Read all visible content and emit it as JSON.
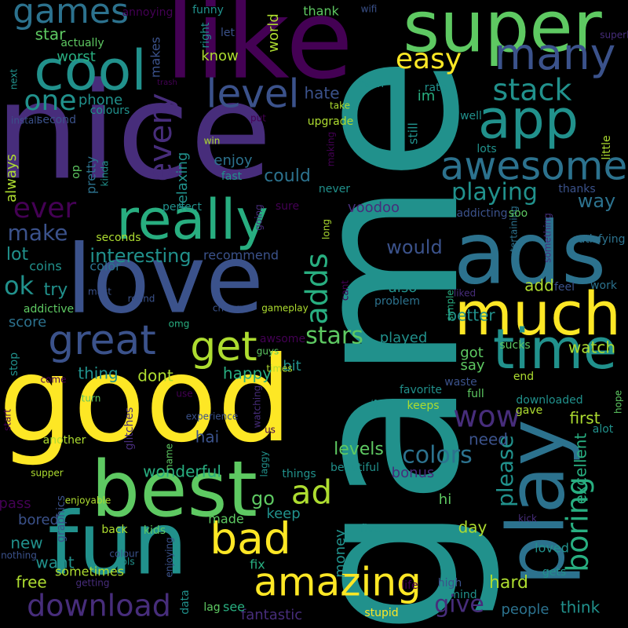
{
  "background": "#000000",
  "palette": {
    "purple": "#440154",
    "indigo": "#472d7b",
    "blue": "#3b528b",
    "steel": "#2c728e",
    "teal": "#21918c",
    "green": "#28ae80",
    "lime": "#5ec962",
    "yellowgreen": "#addc30",
    "yellow": "#fde725"
  },
  "words": [
    {
      "text": "game",
      "color": "teal"
    },
    {
      "text": "nice",
      "color": "indigo"
    },
    {
      "text": "good",
      "color": "yellow"
    },
    {
      "text": "love",
      "color": "blue"
    },
    {
      "text": "like",
      "color": "purple"
    },
    {
      "text": "super",
      "color": "lime"
    },
    {
      "text": "fun",
      "color": "teal"
    },
    {
      "text": "best",
      "color": "lime"
    },
    {
      "text": "ads",
      "color": "steel"
    },
    {
      "text": "much",
      "color": "yellow"
    },
    {
      "text": "cool",
      "color": "teal"
    },
    {
      "text": "play",
      "color": "steel"
    },
    {
      "text": "app",
      "color": "teal"
    },
    {
      "text": "really",
      "color": "green"
    },
    {
      "text": "amazing",
      "color": "yellow"
    },
    {
      "text": "great",
      "color": "blue"
    },
    {
      "text": "time",
      "color": "teal"
    },
    {
      "text": "awesome",
      "color": "steel"
    },
    {
      "text": "many",
      "color": "blue"
    },
    {
      "text": "games",
      "color": "steel"
    },
    {
      "text": "level",
      "color": "blue"
    },
    {
      "text": "bad",
      "color": "yellow"
    },
    {
      "text": "get",
      "color": "yellowgreen"
    },
    {
      "text": "easy",
      "color": "yellow"
    },
    {
      "text": "one",
      "color": "teal"
    },
    {
      "text": "every",
      "color": "indigo"
    },
    {
      "text": "download",
      "color": "indigo"
    },
    {
      "text": "stack",
      "color": "teal"
    },
    {
      "text": "wow",
      "color": "indigo"
    },
    {
      "text": "ad",
      "color": "yellowgreen"
    },
    {
      "text": "ever",
      "color": "purple"
    },
    {
      "text": "boring",
      "color": "green"
    },
    {
      "text": "adds",
      "color": "green"
    },
    {
      "text": "stars",
      "color": "lime"
    },
    {
      "text": "playing",
      "color": "teal"
    },
    {
      "text": "make",
      "color": "blue"
    },
    {
      "text": "colors",
      "color": "steel"
    },
    {
      "text": "please",
      "color": "teal"
    },
    {
      "text": "interesting",
      "color": "teal"
    },
    {
      "text": "wonderful",
      "color": "green"
    },
    {
      "text": "give",
      "color": "indigo"
    },
    {
      "text": "ok",
      "color": "teal"
    },
    {
      "text": "would",
      "color": "blue"
    },
    {
      "text": "watch",
      "color": "yellowgreen"
    },
    {
      "text": "happy",
      "color": "green"
    },
    {
      "text": "first",
      "color": "yellowgreen"
    },
    {
      "text": "could",
      "color": "steel"
    },
    {
      "text": "levels",
      "color": "lime"
    },
    {
      "text": "hard",
      "color": "yellowgreen"
    },
    {
      "text": "better",
      "color": "teal"
    },
    {
      "text": "try",
      "color": "teal"
    },
    {
      "text": "go",
      "color": "lime"
    },
    {
      "text": "way",
      "color": "steel"
    },
    {
      "text": "lot",
      "color": "teal"
    },
    {
      "text": "hate",
      "color": "blue"
    },
    {
      "text": "enjoy",
      "color": "steel"
    },
    {
      "text": "also",
      "color": "teal"
    },
    {
      "text": "add",
      "color": "yellowgreen"
    },
    {
      "text": "relaxing",
      "color": "teal"
    },
    {
      "text": "dont",
      "color": "yellowgreen"
    },
    {
      "text": "thing",
      "color": "teal"
    },
    {
      "text": "need",
      "color": "blue"
    },
    {
      "text": "voodoo",
      "color": "indigo"
    },
    {
      "text": "got",
      "color": "lime"
    },
    {
      "text": "say",
      "color": "lime"
    },
    {
      "text": "day",
      "color": "yellowgreen"
    },
    {
      "text": "people",
      "color": "steel"
    },
    {
      "text": "think",
      "color": "teal"
    },
    {
      "text": "score",
      "color": "steel"
    },
    {
      "text": "played",
      "color": "teal"
    },
    {
      "text": "bit",
      "color": "teal"
    },
    {
      "text": "hai",
      "color": "blue"
    },
    {
      "text": "bored",
      "color": "blue"
    },
    {
      "text": "fantastic",
      "color": "indigo"
    },
    {
      "text": "keep",
      "color": "teal"
    },
    {
      "text": "hi",
      "color": "lime"
    },
    {
      "text": "bonus",
      "color": "indigo"
    },
    {
      "text": "free",
      "color": "yellowgreen"
    },
    {
      "text": "want",
      "color": "teal"
    },
    {
      "text": "new",
      "color": "teal"
    },
    {
      "text": "pass",
      "color": "purple"
    },
    {
      "text": "money",
      "color": "teal"
    },
    {
      "text": "excellent",
      "color": "green"
    },
    {
      "text": "loved",
      "color": "teal"
    },
    {
      "text": "know",
      "color": "yellowgreen"
    },
    {
      "text": "star",
      "color": "lime"
    },
    {
      "text": "worst",
      "color": "green"
    },
    {
      "text": "phone",
      "color": "teal"
    },
    {
      "text": "thank",
      "color": "lime"
    },
    {
      "text": "world",
      "color": "yellowgreen"
    },
    {
      "text": "im",
      "color": "green"
    },
    {
      "text": "even",
      "color": "teal"
    },
    {
      "text": "upgrade",
      "color": "yellowgreen"
    },
    {
      "text": "still",
      "color": "teal"
    },
    {
      "text": "pretty",
      "color": "steel"
    },
    {
      "text": "always",
      "color": "yellowgreen"
    },
    {
      "text": "little",
      "color": "yellowgreen"
    },
    {
      "text": "thanks",
      "color": "blue"
    },
    {
      "text": "satisfying",
      "color": "steel"
    },
    {
      "text": "fast",
      "color": "teal"
    },
    {
      "text": "perfect",
      "color": "teal"
    },
    {
      "text": "recommend",
      "color": "blue"
    },
    {
      "text": "color",
      "color": "steel"
    },
    {
      "text": "coins",
      "color": "teal"
    },
    {
      "text": "addictive",
      "color": "lime"
    },
    {
      "text": "stop",
      "color": "teal"
    },
    {
      "text": "problem",
      "color": "steel"
    },
    {
      "text": "round",
      "color": "blue"
    },
    {
      "text": "mast",
      "color": "blue"
    },
    {
      "text": "feel",
      "color": "blue"
    },
    {
      "text": "work",
      "color": "steel"
    },
    {
      "text": "fix",
      "color": "green"
    },
    {
      "text": "sometimes",
      "color": "yellowgreen"
    },
    {
      "text": "back",
      "color": "yellowgreen"
    },
    {
      "text": "kids",
      "color": "lime"
    },
    {
      "text": "made",
      "color": "lime"
    },
    {
      "text": "lag",
      "color": "lime"
    },
    {
      "text": "see",
      "color": "green"
    },
    {
      "text": "stupid",
      "color": "yellow"
    },
    {
      "text": "high",
      "color": "blue"
    },
    {
      "text": "mind",
      "color": "teal"
    },
    {
      "text": "gets",
      "color": "teal"
    },
    {
      "text": "life",
      "color": "purple"
    },
    {
      "text": "getting",
      "color": "indigo"
    },
    {
      "text": "data",
      "color": "teal"
    },
    {
      "text": "graphics",
      "color": "blue"
    },
    {
      "text": "enjoying",
      "color": "blue"
    },
    {
      "text": "enjoyable",
      "color": "yellowgreen"
    },
    {
      "text": "things",
      "color": "teal"
    },
    {
      "text": "beautiful",
      "color": "teal"
    },
    {
      "text": "five",
      "color": "teal"
    },
    {
      "text": "kick",
      "color": "indigo"
    },
    {
      "text": "awsome",
      "color": "purple"
    },
    {
      "text": "guys",
      "color": "lime"
    },
    {
      "text": "times",
      "color": "yellowgreen"
    },
    {
      "text": "gameplay",
      "color": "yellowgreen"
    },
    {
      "text": "change",
      "color": "blue"
    },
    {
      "text": "omg",
      "color": "green"
    },
    {
      "text": "use",
      "color": "purple"
    },
    {
      "text": "turn",
      "color": "lime"
    },
    {
      "text": "come",
      "color": "purple"
    },
    {
      "text": "experience",
      "color": "blue"
    },
    {
      "text": "name",
      "color": "lime"
    },
    {
      "text": "glitches",
      "color": "indigo"
    },
    {
      "text": "another",
      "color": "yellowgreen"
    },
    {
      "text": "supper",
      "color": "yellowgreen"
    },
    {
      "text": "start",
      "color": "purple"
    },
    {
      "text": "nothing",
      "color": "blue"
    },
    {
      "text": "colour",
      "color": "blue"
    },
    {
      "text": "pls",
      "color": "teal"
    },
    {
      "text": "us",
      "color": "purple"
    },
    {
      "text": "laggy",
      "color": "teal"
    },
    {
      "text": "watching",
      "color": "indigo"
    },
    {
      "text": "less",
      "color": "teal"
    },
    {
      "text": "favorite",
      "color": "teal"
    },
    {
      "text": "keeps",
      "color": "yellowgreen"
    },
    {
      "text": "sucks",
      "color": "lime"
    },
    {
      "text": "waste",
      "color": "blue"
    },
    {
      "text": "full",
      "color": "lime"
    },
    {
      "text": "gave",
      "color": "yellowgreen"
    },
    {
      "text": "downloaded",
      "color": "teal"
    },
    {
      "text": "end",
      "color": "yellowgreen"
    },
    {
      "text": "hope",
      "color": "lime"
    },
    {
      "text": "alot",
      "color": "teal"
    },
    {
      "text": "simple",
      "color": "green"
    },
    {
      "text": "liked",
      "color": "indigo"
    },
    {
      "text": "cant",
      "color": "purple"
    },
    {
      "text": "something",
      "color": "indigo"
    },
    {
      "text": "entertaining",
      "color": "steel"
    },
    {
      "text": "addicting",
      "color": "blue"
    },
    {
      "text": "soo",
      "color": "lime"
    },
    {
      "text": "never",
      "color": "teal"
    },
    {
      "text": "long",
      "color": "yellowgreen"
    },
    {
      "text": "going",
      "color": "indigo"
    },
    {
      "text": "sure",
      "color": "purple"
    },
    {
      "text": "seconds",
      "color": "yellowgreen"
    },
    {
      "text": "op",
      "color": "lime"
    },
    {
      "text": "kinda",
      "color": "teal"
    },
    {
      "text": "making",
      "color": "purple"
    },
    {
      "text": "lots",
      "color": "teal"
    },
    {
      "text": "well",
      "color": "teal"
    },
    {
      "text": "rate",
      "color": "teal"
    },
    {
      "text": "take",
      "color": "yellowgreen"
    },
    {
      "text": "trash",
      "color": "purple"
    },
    {
      "text": "put",
      "color": "purple"
    },
    {
      "text": "win",
      "color": "yellowgreen"
    },
    {
      "text": "colours",
      "color": "teal"
    },
    {
      "text": "second",
      "color": "blue"
    },
    {
      "text": "install",
      "color": "blue"
    },
    {
      "text": "next",
      "color": "teal"
    },
    {
      "text": "makes",
      "color": "blue"
    },
    {
      "text": "actually",
      "color": "lime"
    },
    {
      "text": "annoying",
      "color": "purple"
    },
    {
      "text": "funny",
      "color": "teal"
    },
    {
      "text": "right",
      "color": "teal"
    },
    {
      "text": "let",
      "color": "blue"
    },
    {
      "text": "wifi",
      "color": "blue"
    },
    {
      "text": "superb",
      "color": "indigo"
    },
    {
      "text": "okay",
      "color": "lime"
    }
  ]
}
